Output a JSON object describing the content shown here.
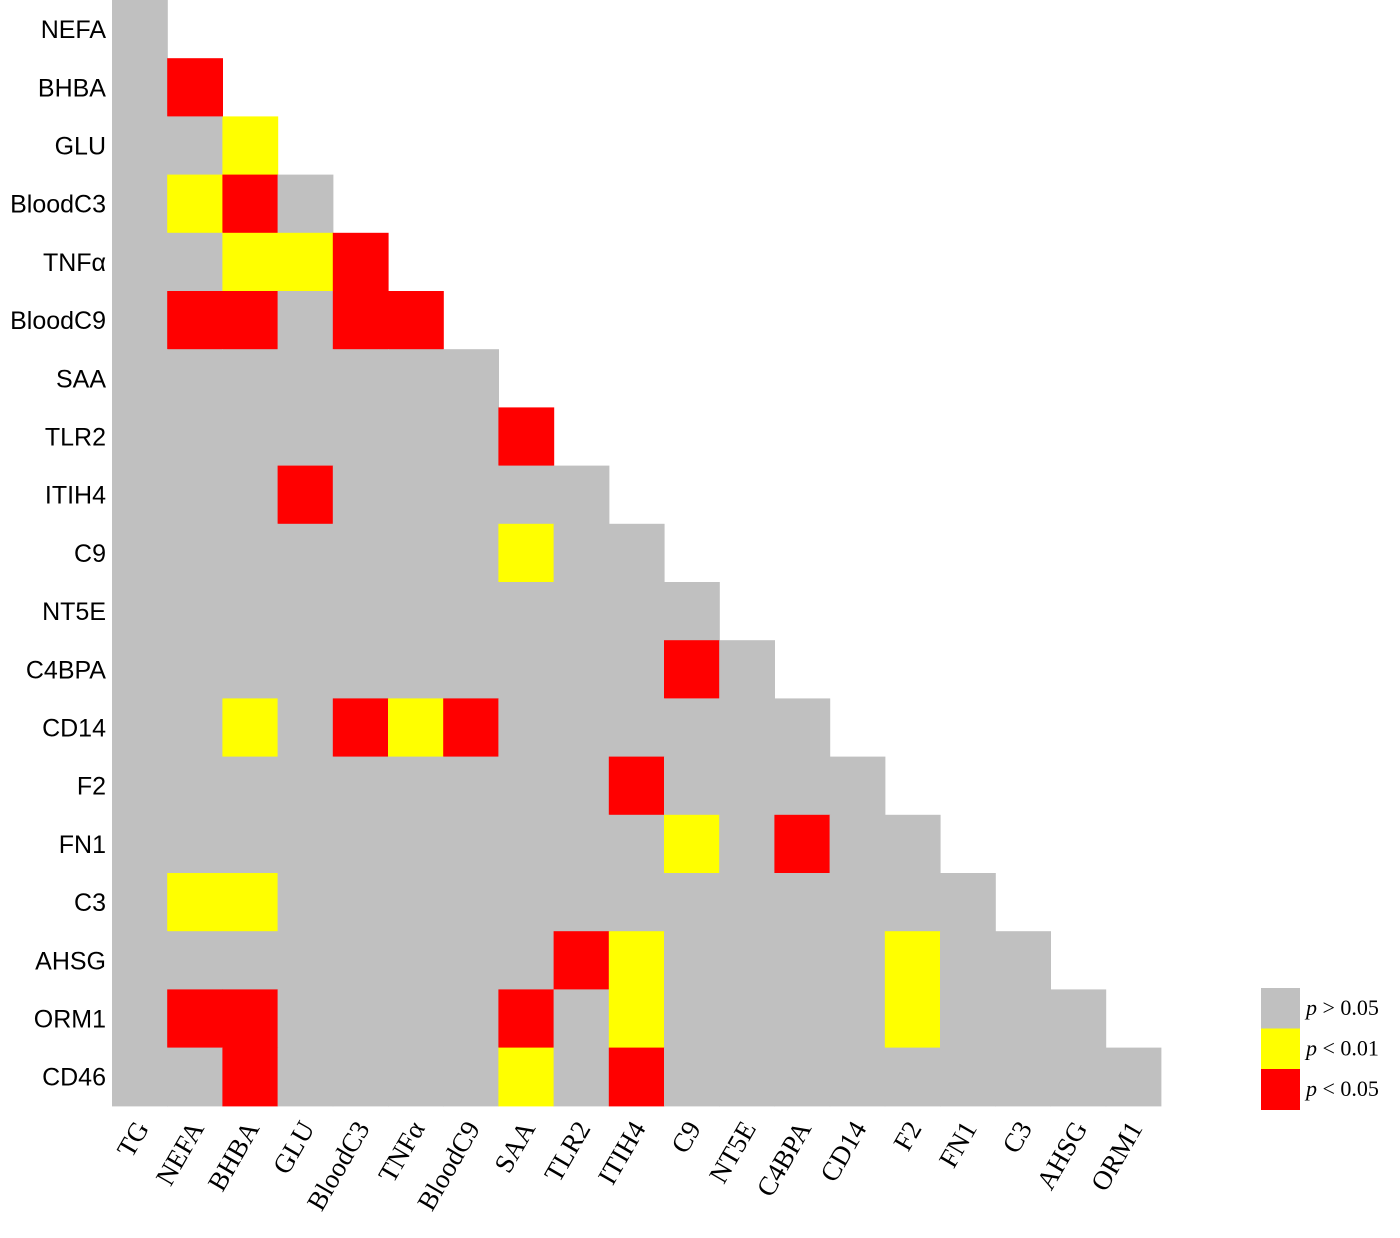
{
  "chart_data": {
    "type": "heatmap",
    "title": "",
    "row_labels": [
      "NEFA",
      "BHBA",
      "GLU",
      "BloodC3",
      "TNFα",
      "BloodC9",
      "SAA",
      "TLR2",
      "ITIH4",
      "C9",
      "NT5E",
      "C4BPA",
      "CD14",
      "F2",
      "FN1",
      "C3",
      "AHSG",
      "ORM1",
      "CD46"
    ],
    "col_labels": [
      "TG",
      "NEFA",
      "BHBA",
      "GLU",
      "BloodC3",
      "TNFα",
      "BloodC9",
      "SAA",
      "TLR2",
      "ITIH4",
      "C9",
      "NT5E",
      "C4BPA",
      "CD14",
      "F2",
      "FN1",
      "C3",
      "AHSG",
      "ORM1"
    ],
    "value_meaning": {
      "0": "p > 0.05",
      "1": "p < 0.01",
      "2": "p < 0.05"
    },
    "matrix": [
      [
        0
      ],
      [
        0,
        2
      ],
      [
        0,
        0,
        1
      ],
      [
        0,
        1,
        2,
        0
      ],
      [
        0,
        0,
        1,
        1,
        2
      ],
      [
        0,
        2,
        2,
        0,
        2,
        2
      ],
      [
        0,
        0,
        0,
        0,
        0,
        0,
        0
      ],
      [
        0,
        0,
        0,
        0,
        0,
        0,
        0,
        2
      ],
      [
        0,
        0,
        0,
        2,
        0,
        0,
        0,
        0,
        0
      ],
      [
        0,
        0,
        0,
        0,
        0,
        0,
        0,
        1,
        0,
        0
      ],
      [
        0,
        0,
        0,
        0,
        0,
        0,
        0,
        0,
        0,
        0,
        0
      ],
      [
        0,
        0,
        0,
        0,
        0,
        0,
        0,
        0,
        0,
        0,
        2,
        0
      ],
      [
        0,
        0,
        1,
        0,
        2,
        1,
        2,
        0,
        0,
        0,
        0,
        0,
        0
      ],
      [
        0,
        0,
        0,
        0,
        0,
        0,
        0,
        0,
        0,
        2,
        0,
        0,
        0,
        0
      ],
      [
        0,
        0,
        0,
        0,
        0,
        0,
        0,
        0,
        0,
        0,
        1,
        0,
        2,
        0,
        0
      ],
      [
        0,
        1,
        1,
        0,
        0,
        0,
        0,
        0,
        0,
        0,
        0,
        0,
        0,
        0,
        0,
        0
      ],
      [
        0,
        0,
        0,
        0,
        0,
        0,
        0,
        0,
        2,
        1,
        0,
        0,
        0,
        0,
        1,
        0,
        0
      ],
      [
        0,
        2,
        2,
        0,
        0,
        0,
        0,
        2,
        0,
        1,
        0,
        0,
        0,
        0,
        1,
        0,
        0,
        0
      ],
      [
        0,
        0,
        2,
        0,
        0,
        0,
        0,
        1,
        0,
        2,
        0,
        0,
        0,
        0,
        0,
        0,
        0,
        0,
        0
      ]
    ],
    "colors": {
      "0": "#c0c0c0",
      "1": "#ffff00",
      "2": "#ff0000"
    },
    "legend": {
      "position": "bottom-right",
      "items": [
        {
          "italic": "p",
          "rest": " > 0.05",
          "color": "#c0c0c0"
        },
        {
          "italic": "p",
          "rest": " < 0.01",
          "color": "#ffff00"
        },
        {
          "italic": "p",
          "rest": " < 0.05",
          "color": "#ff0000"
        }
      ]
    }
  }
}
